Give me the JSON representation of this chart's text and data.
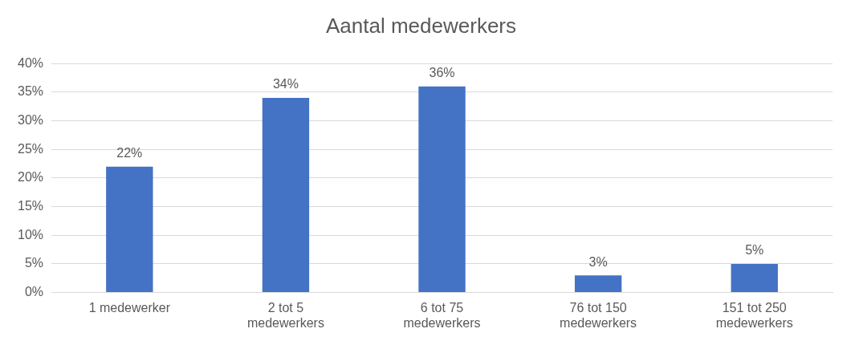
{
  "chart_data": {
    "type": "bar",
    "title": "Aantal medewerkers",
    "categories": [
      "1 medewerker",
      "2 tot 5 medewerkers",
      "6 tot 75 medewerkers",
      "76 tot 150 medewerkers",
      "151 tot 250 medewerkers"
    ],
    "values": [
      22,
      34,
      36,
      3,
      5
    ],
    "value_labels": [
      "22%",
      "34%",
      "36%",
      "3%",
      "5%"
    ],
    "color": "#4472c4",
    "ylim": [
      0,
      40
    ],
    "yticks": [
      {
        "value": 0,
        "label": "0%"
      },
      {
        "value": 5,
        "label": "5%"
      },
      {
        "value": 10,
        "label": "10%"
      },
      {
        "value": 15,
        "label": "15%"
      },
      {
        "value": 20,
        "label": "20%"
      },
      {
        "value": 25,
        "label": "25%"
      },
      {
        "value": 30,
        "label": "30%"
      },
      {
        "value": 35,
        "label": "35%"
      },
      {
        "value": 40,
        "label": "40%"
      }
    ],
    "grid": "y",
    "legend": false
  }
}
